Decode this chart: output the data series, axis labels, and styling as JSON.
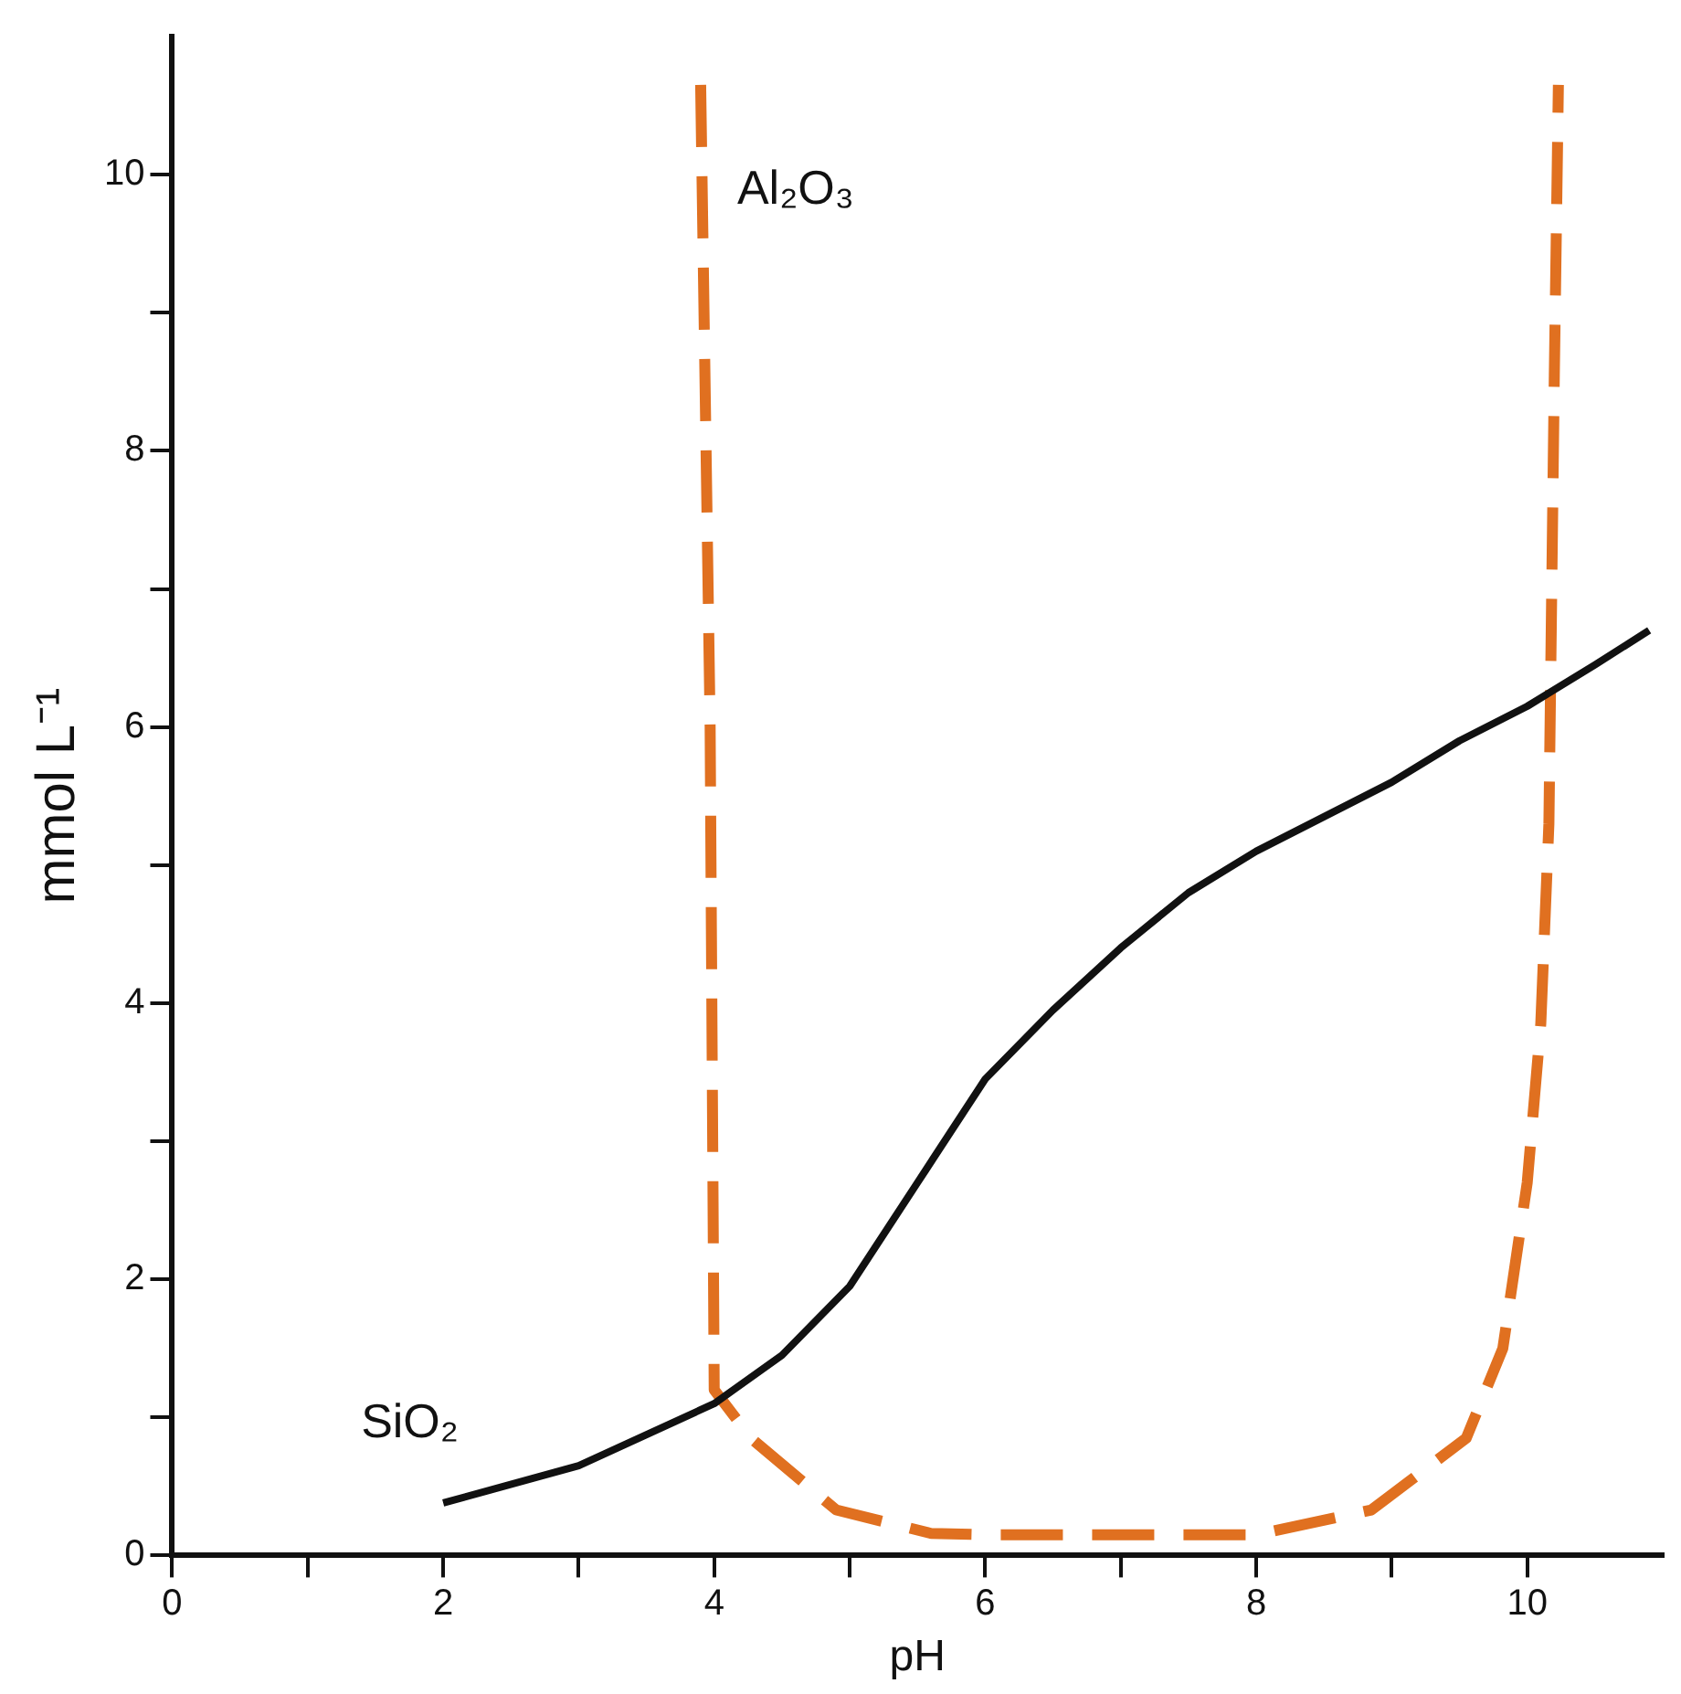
{
  "chart_data": {
    "type": "line",
    "xlabel": "pH",
    "ylabel": "mmol L⁻¹",
    "xlim": [
      0,
      11
    ],
    "ylim": [
      0,
      11
    ],
    "xticks": [
      0,
      {
        "value": 1,
        "label": null
      },
      2,
      {
        "value": 3,
        "label": null
      },
      4,
      {
        "value": 5,
        "label": null
      },
      6,
      {
        "value": 7,
        "label": null
      },
      8,
      {
        "value": 9,
        "label": null
      },
      10
    ],
    "yticks": [
      0,
      {
        "value": 1,
        "label": null
      },
      2,
      {
        "value": 3,
        "label": null
      },
      4,
      {
        "value": 5,
        "label": null
      },
      6,
      {
        "value": 7,
        "label": null
      },
      8,
      {
        "value": 9,
        "label": null
      },
      10
    ],
    "grid": false,
    "legend": false,
    "marker": "none",
    "series": [
      {
        "name": "SiO₂",
        "color": "#111111",
        "line_style": "solid",
        "x": [
          2,
          3,
          4,
          4.5,
          5,
          5.5,
          6,
          6.5,
          7,
          7.5,
          8,
          8.5,
          9,
          9.5,
          10,
          10.5,
          10.9
        ],
        "values": [
          0.38,
          0.65,
          1.1,
          1.45,
          1.95,
          2.7,
          3.45,
          3.95,
          4.4,
          4.8,
          5.1,
          5.35,
          5.6,
          5.9,
          6.15,
          6.45,
          6.7
        ]
      },
      {
        "name": "Al₂O₃",
        "color": "#e07020",
        "line_style": "dashed",
        "x": [
          3.9,
          3.97,
          4.0,
          4.27,
          4.9,
          5.6,
          6,
          7,
          8,
          8.85,
          9.55,
          9.82,
          10.0,
          10.1,
          10.16,
          10.2,
          10.23
        ],
        "values": [
          10.65,
          6,
          1.2,
          0.85,
          0.33,
          0.16,
          0.15,
          0.15,
          0.15,
          0.33,
          0.85,
          1.5,
          2.7,
          3.85,
          5.3,
          8.55,
          10.65
        ]
      }
    ]
  }
}
